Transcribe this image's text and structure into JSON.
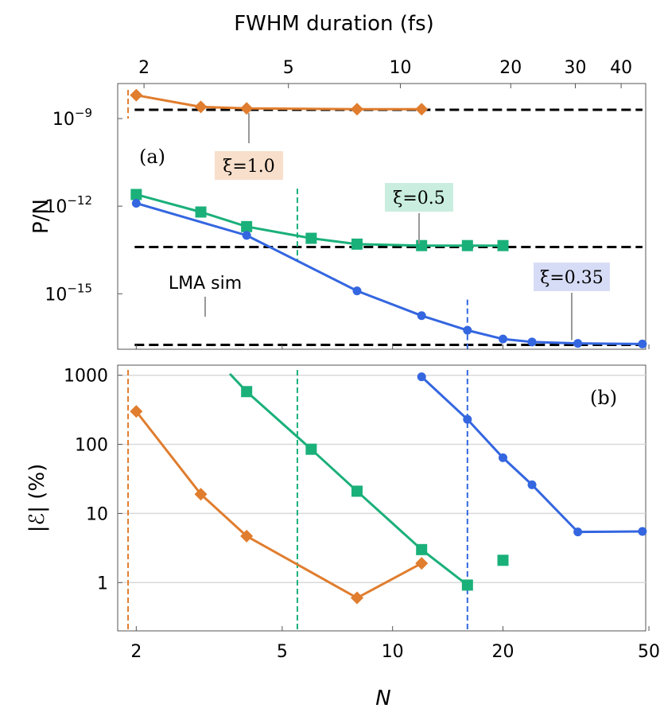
{
  "chart_data": {
    "type": "line",
    "xlabel": "N",
    "top_xlabel": "FWHM duration (fs)",
    "x_scale": "log",
    "xlim": [
      1.78,
      49
    ],
    "x_ticks": [
      2,
      5,
      10,
      20,
      50
    ],
    "x_tick_labels": [
      "2",
      "5",
      "10",
      "20",
      "50"
    ],
    "top_ticks": [
      {
        "N": 2.1,
        "label": "2"
      },
      {
        "N": 5.2,
        "label": "5"
      },
      {
        "N": 10.5,
        "label": "10"
      },
      {
        "N": 21,
        "label": "20"
      },
      {
        "N": 31.5,
        "label": "30"
      },
      {
        "N": 42,
        "label": "40"
      }
    ],
    "colors": {
      "xi_1_0": "#e07d2e",
      "xi_0_5": "#1ab07a",
      "xi_0_35": "#3466e0",
      "lma": "#000000",
      "grid": "#d9d9d9"
    },
    "panels": [
      {
        "id": "a",
        "panel_label": "(a)",
        "ylabel": "P/N",
        "y_scale": "log",
        "ylim_exponent": [
          -16.9,
          -7.8
        ],
        "y_ticks": [
          {
            "exp": -9,
            "base": "10",
            "power": "−9"
          },
          {
            "exp": -12,
            "base": "10",
            "power": "−12"
          },
          {
            "exp": -15,
            "base": "10",
            "power": "−15"
          }
        ],
        "lma_label": "LMA sim",
        "series": [
          {
            "name": "ξ=1.0",
            "color": "#e07d2e",
            "marker": "diamond",
            "x": [
              2,
              3,
              4,
              8,
              12
            ],
            "y_exponent": [
              -8.2,
              -8.6,
              -8.65,
              -8.68,
              -8.68
            ],
            "lma_exponent": -8.7,
            "critical_N": 1.9
          },
          {
            "name": "ξ=0.5",
            "color": "#1ab07a",
            "marker": "square",
            "x": [
              2,
              3,
              4,
              6,
              8,
              12,
              16,
              20
            ],
            "y_exponent": [
              -11.6,
              -12.2,
              -12.7,
              -13.1,
              -13.3,
              -13.35,
              -13.35,
              -13.35
            ],
            "lma_exponent": -13.4,
            "critical_N": 5.5
          },
          {
            "name": "ξ=0.35",
            "color": "#3466e0",
            "marker": "circle",
            "x": [
              2,
              4,
              8,
              12,
              16,
              20,
              24,
              32,
              48
            ],
            "y_exponent": [
              -11.9,
              -13.0,
              -14.9,
              -15.75,
              -16.25,
              -16.55,
              -16.65,
              -16.7,
              -16.72
            ],
            "lma_exponent": -16.75,
            "critical_N": 16
          }
        ]
      },
      {
        "id": "b",
        "panel_label": "(b)",
        "ylabel": "|ℰ| (%)",
        "y_scale": "log",
        "ylim": [
          0.2,
          1400
        ],
        "y_ticks": [
          1,
          10,
          100,
          1000
        ],
        "y_tick_labels": [
          "1",
          "10",
          "100",
          "1000"
        ],
        "series": [
          {
            "name": "ξ=1.0",
            "color": "#e07d2e",
            "marker": "diamond",
            "x": [
              2,
              3,
              4,
              8,
              12
            ],
            "y": [
              300,
              19,
              4.7,
              0.6,
              1.9
            ],
            "line_start": null
          },
          {
            "name": "ξ=0.5",
            "color": "#1ab07a",
            "marker": "square",
            "x": [
              4,
              6,
              8,
              12,
              16,
              20
            ],
            "y": [
              580,
              85,
              21,
              3.0,
              0.92,
              2.1
            ],
            "line_start": [
              3.6,
              1050
            ],
            "line_until_index": 4
          },
          {
            "name": "ξ=0.35",
            "color": "#3466e0",
            "marker": "circle",
            "x": [
              12,
              16,
              20,
              24,
              32,
              48
            ],
            "y": [
              950,
              230,
              64,
              26,
              5.4,
              5.5
            ],
            "line_start": null
          }
        ]
      }
    ]
  }
}
